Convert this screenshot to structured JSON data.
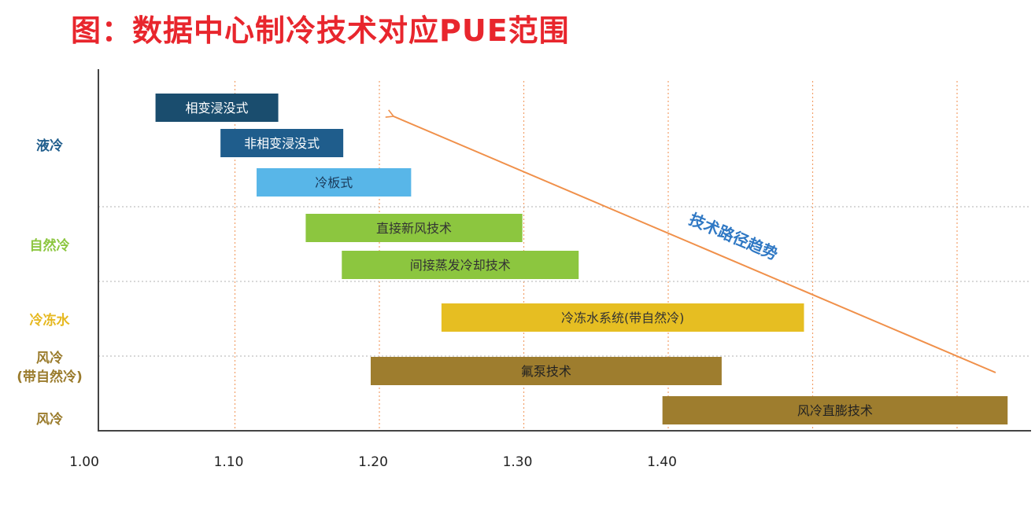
{
  "title": "图：数据中心制冷技术对应PUE范围",
  "chart_data": {
    "type": "range-bar",
    "title": "图：数据中心制冷技术对应PUE范围",
    "x_ticks": [
      1.0,
      1.1,
      1.2,
      1.3,
      1.4
    ],
    "x_tick_labels": [
      "1.00",
      "1.10",
      "1.20",
      "1.30",
      "1.40"
    ],
    "xlim": [
      1.0,
      1.64
    ],
    "groups": [
      {
        "label": "液冷",
        "color": "#1f5d8c"
      },
      {
        "label": "自然冷",
        "color": "#8cc63f"
      },
      {
        "label": "冷冻水",
        "color": "#e6b820"
      },
      {
        "label": "风冷\n(带自然冷)",
        "color": "#9a7b2c"
      },
      {
        "label": "风冷",
        "color": "#9a7b2c"
      }
    ],
    "bars": [
      {
        "label": "相变浸没式",
        "group": "液冷",
        "start": 1.045,
        "end": 1.13,
        "color": "#1a4d6e",
        "text_color": "#ffffff"
      },
      {
        "label": "非相变浸没式",
        "group": "液冷",
        "start": 1.09,
        "end": 1.175,
        "color": "#1f5d8c",
        "text_color": "#ffffff"
      },
      {
        "label": "冷板式",
        "group": "液冷",
        "start": 1.115,
        "end": 1.222,
        "color": "#58b6e8",
        "text_color": "#1b3a5a"
      },
      {
        "label": "直接新风技术",
        "group": "自然冷",
        "start": 1.149,
        "end": 1.299,
        "color": "#8cc63f",
        "text_color": "#333333"
      },
      {
        "label": "间接蒸发冷却技术",
        "group": "自然冷",
        "start": 1.174,
        "end": 1.338,
        "color": "#8cc63f",
        "text_color": "#333333"
      },
      {
        "label": "冷冻水系统(带自然冷)",
        "group": "冷冻水",
        "start": 1.243,
        "end": 1.494,
        "color": "#e6be22",
        "text_color": "#333333"
      },
      {
        "label": "氟泵技术",
        "group": "风冷\n(带自然冷)",
        "start": 1.194,
        "end": 1.437,
        "color": "#9e7d2e",
        "text_color": "#222222"
      },
      {
        "label": "风冷直膨技术",
        "group": "风冷",
        "start": 1.396,
        "end": 1.635,
        "color": "#9e7d2e",
        "text_color": "#222222"
      }
    ],
    "annotation": {
      "label": "技术路径趋势",
      "from": 1.63,
      "to": 1.205,
      "color": "#f0904a"
    },
    "grid": "vertical dotted"
  }
}
